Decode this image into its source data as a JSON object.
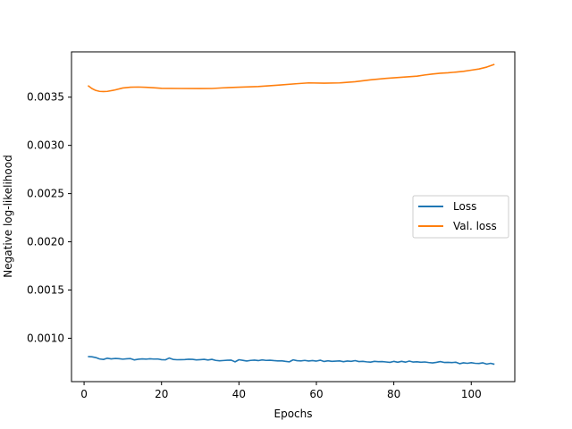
{
  "chart_data": {
    "type": "line",
    "title": "",
    "xlabel": "Epochs",
    "ylabel": "Negative log-likelihood",
    "xlim": [
      -3.25,
      111.25
    ],
    "ylim": [
      0.00055,
      0.00397
    ],
    "xticks": [
      0,
      20,
      40,
      60,
      80,
      100
    ],
    "xtick_labels": [
      "0",
      "20",
      "40",
      "60",
      "80",
      "100"
    ],
    "yticks": [
      0.001,
      0.0015,
      0.002,
      0.0025,
      0.003,
      0.0035
    ],
    "ytick_labels": [
      "0.0010",
      "0.0015",
      "0.0020",
      "0.0025",
      "0.0030",
      "0.0035"
    ],
    "grid": false,
    "legend_position": "center-right",
    "series": [
      {
        "name": "Loss",
        "color": "#1f77b4",
        "x": [
          1,
          2,
          3,
          4,
          5,
          6,
          7,
          8,
          9,
          10,
          11,
          12,
          13,
          14,
          15,
          16,
          17,
          18,
          19,
          20,
          21,
          22,
          23,
          24,
          25,
          26,
          27,
          28,
          29,
          30,
          31,
          32,
          33,
          34,
          35,
          36,
          37,
          38,
          39,
          40,
          41,
          42,
          43,
          44,
          45,
          46,
          47,
          48,
          49,
          50,
          51,
          52,
          53,
          54,
          55,
          56,
          57,
          58,
          59,
          60,
          61,
          62,
          63,
          64,
          65,
          66,
          67,
          68,
          69,
          70,
          71,
          72,
          73,
          74,
          75,
          76,
          77,
          78,
          79,
          80,
          81,
          82,
          83,
          84,
          85,
          86,
          87,
          88,
          89,
          90,
          91,
          92,
          93,
          94,
          95,
          96,
          97,
          98,
          99,
          100,
          101,
          102,
          103,
          104,
          105,
          106
        ],
        "y": [
          0.00081,
          0.000808,
          0.0008,
          0.000785,
          0.00078,
          0.000793,
          0.000786,
          0.00079,
          0.000788,
          0.000783,
          0.000787,
          0.000789,
          0.000775,
          0.000782,
          0.000786,
          0.000783,
          0.000787,
          0.000784,
          0.000785,
          0.000778,
          0.000776,
          0.000795,
          0.00078,
          0.000777,
          0.000778,
          0.000779,
          0.000782,
          0.000781,
          0.000775,
          0.000778,
          0.000781,
          0.000774,
          0.000781,
          0.00077,
          0.000766,
          0.000769,
          0.000772,
          0.000773,
          0.000755,
          0.000777,
          0.000771,
          0.000764,
          0.00077,
          0.000773,
          0.000768,
          0.000775,
          0.00077,
          0.000772,
          0.000768,
          0.000765,
          0.000766,
          0.00076,
          0.000755,
          0.000776,
          0.000767,
          0.000765,
          0.00077,
          0.000764,
          0.000768,
          0.000763,
          0.000772,
          0.000759,
          0.000766,
          0.00076,
          0.000763,
          0.000765,
          0.000757,
          0.000764,
          0.00076,
          0.000768,
          0.000758,
          0.00076,
          0.000755,
          0.000752,
          0.00076,
          0.000757,
          0.000758,
          0.000754,
          0.00075,
          0.00076,
          0.000751,
          0.00076,
          0.000752,
          0.000763,
          0.000753,
          0.000756,
          0.000751,
          0.000754,
          0.000748,
          0.000744,
          0.00075,
          0.000758,
          0.000749,
          0.00075,
          0.000748,
          0.000751,
          0.000736,
          0.000745,
          0.00074,
          0.000746,
          0.00074,
          0.000738,
          0.000745,
          0.000732,
          0.00074,
          0.00073
        ]
      },
      {
        "name": "Val. loss",
        "color": "#ff7f0e",
        "x": [
          1,
          2,
          3,
          4,
          5,
          6,
          8,
          10,
          12,
          14,
          16,
          18,
          20,
          25,
          30,
          33,
          36,
          40,
          45,
          50,
          55,
          58,
          62,
          66,
          70,
          74,
          78,
          82,
          86,
          88,
          90,
          92,
          94,
          96,
          98,
          100,
          102,
          104,
          106
        ],
        "y": [
          0.00362,
          0.00359,
          0.00357,
          0.00356,
          0.003558,
          0.00356,
          0.003575,
          0.003595,
          0.003603,
          0.003605,
          0.003602,
          0.003598,
          0.003592,
          0.00359,
          0.003589,
          0.00359,
          0.003597,
          0.003603,
          0.00361,
          0.003624,
          0.00364,
          0.003648,
          0.003645,
          0.003648,
          0.00366,
          0.00368,
          0.003695,
          0.003706,
          0.003718,
          0.00373,
          0.00374,
          0.003748,
          0.003753,
          0.00376,
          0.003768,
          0.00378,
          0.003792,
          0.003812,
          0.00384
        ]
      }
    ]
  }
}
